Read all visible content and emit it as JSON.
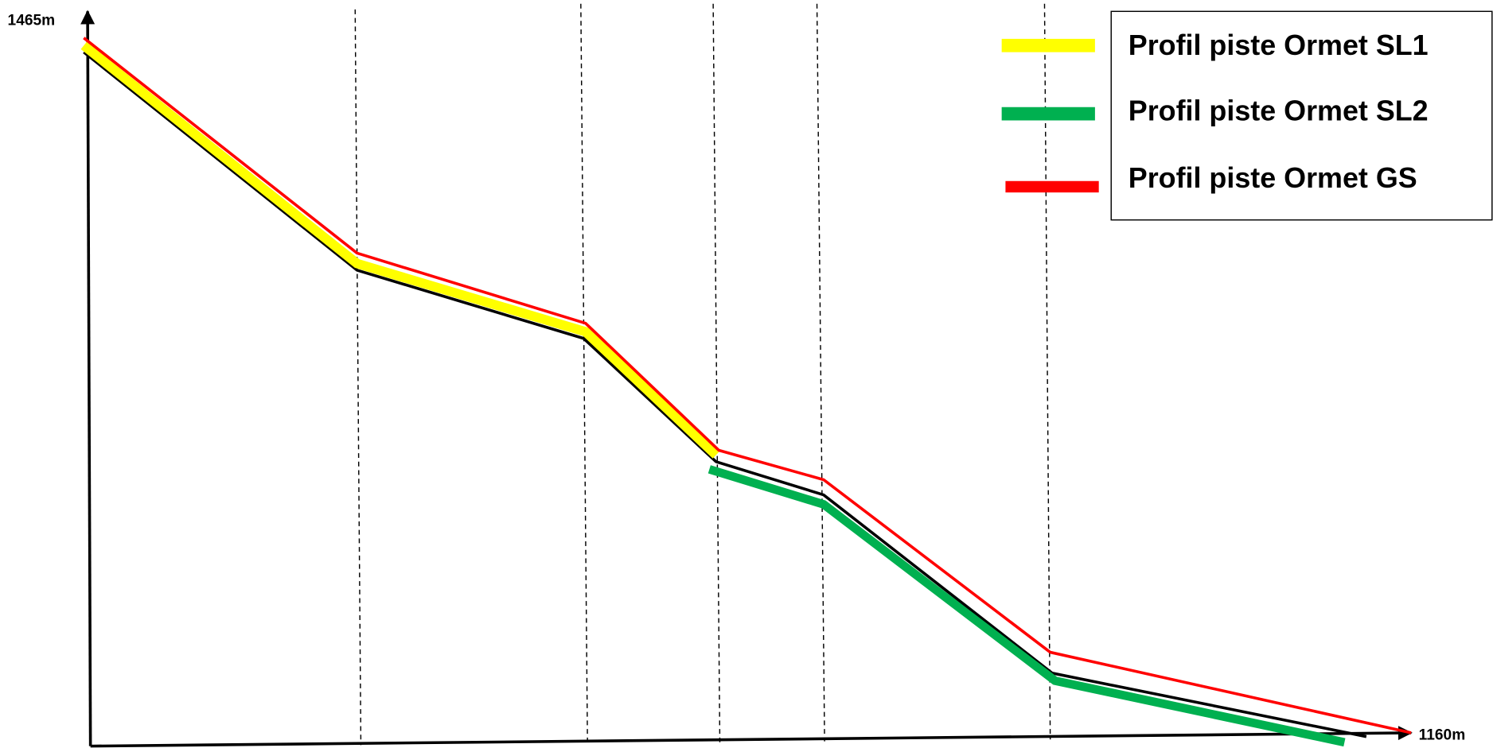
{
  "axis": {
    "y_label": "1465m",
    "x_label": "1160m"
  },
  "legend": {
    "items": [
      {
        "name": "Profil piste Ormet SL1",
        "color": "#ffff00"
      },
      {
        "name": "Profil piste Ormet SL2",
        "color": "#00b050"
      },
      {
        "name": "Profil piste Ormet GS",
        "color": "#ff0000"
      }
    ]
  }
}
